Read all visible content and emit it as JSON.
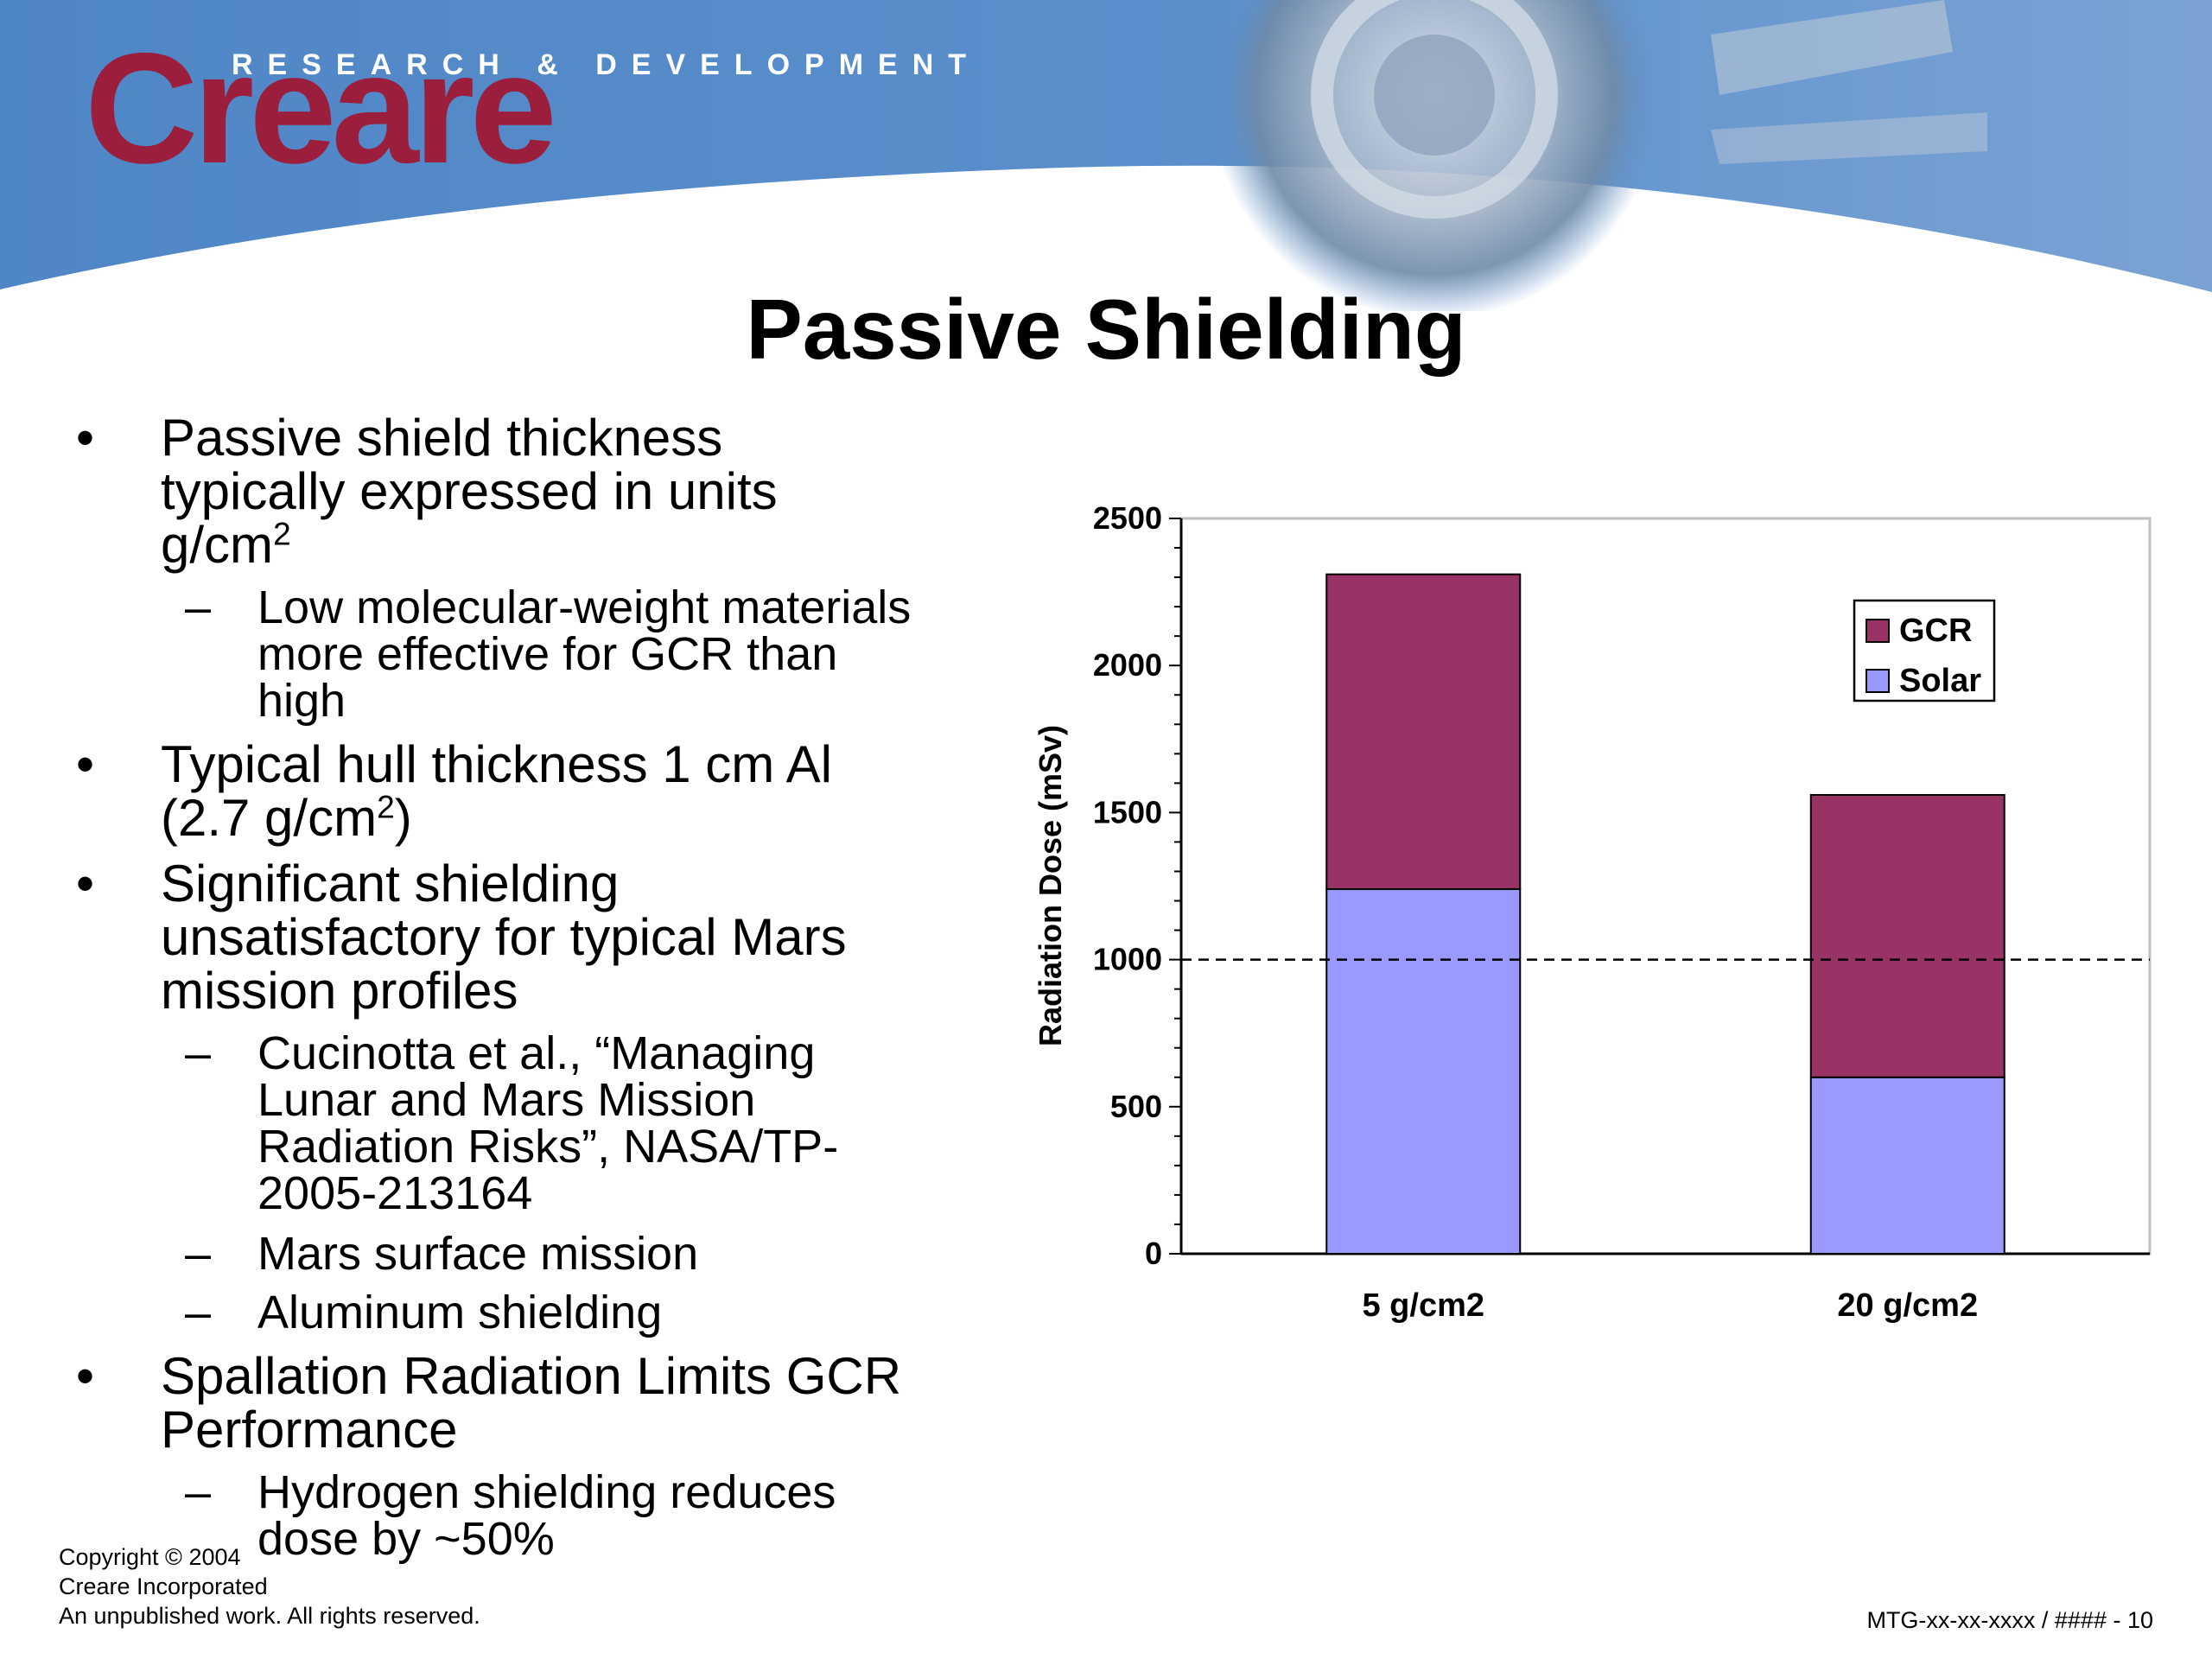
{
  "header": {
    "logo_tagline": "RESEARCH & DEVELOPMENT",
    "logo_word": "Creare",
    "banner_color": "#4a7fc1",
    "logo_color": "#9b1e3c"
  },
  "slide": {
    "title": "Passive Shielding",
    "bullets": [
      {
        "text_lines": [
          "Passive shield thickness",
          "typically expressed in units"
        ],
        "unit_base": "g/cm",
        "unit_sup": "2"
      },
      {
        "text": [
          "Low molecular-weight materials",
          "more effective for GCR than",
          "high"
        ]
      },
      {
        "text_main": "Typical hull thickness 1 cm Al",
        "text_unit_pre": "(2.7 g/cm",
        "text_unit_sup": "2",
        "text_unit_post": ")"
      },
      {
        "text": [
          "Significant shielding",
          "unsatisfactory for typical Mars",
          "mission profiles"
        ]
      },
      {
        "text": [
          "Cucinotta et al., “Managing",
          "Lunar and Mars Mission",
          "Radiation Risks”, NASA/TP-",
          "2005-213164"
        ]
      },
      {
        "text": [
          "Mars surface mission"
        ]
      },
      {
        "text": [
          "Aluminum shielding"
        ]
      },
      {
        "text": [
          "Spallation Radiation Limits GCR",
          "Performance"
        ]
      },
      {
        "text": [
          "Hydrogen shielding reduces",
          "dose by ~50%"
        ]
      }
    ],
    "bullet_symbol": "•",
    "dash_symbol": "–"
  },
  "footer": {
    "copyright": [
      "Copyright © 2004",
      "Creare Incorporated",
      "An unpublished work.  All rights reserved."
    ],
    "page_ref": "MTG-xx-xx-xxxx / #### - 10"
  },
  "chart_data": {
    "type": "bar",
    "stacked": true,
    "categories": [
      "5 g/cm2",
      "20 g/cm2"
    ],
    "series": [
      {
        "name": "Solar",
        "values": [
          1240,
          600
        ],
        "color": "#9999ff"
      },
      {
        "name": "GCR",
        "values": [
          1070,
          960
        ],
        "color": "#993366"
      }
    ],
    "reference_line": {
      "y": 1000,
      "style": "dashed"
    },
    "ylabel": "Radiation Dose (mSv)",
    "xlabel": "",
    "ylim": [
      0,
      2500
    ],
    "yticks": [
      0,
      500,
      1000,
      1500,
      2000,
      2500
    ],
    "legend_position": "top-right",
    "legend_order": [
      "GCR",
      "Solar"
    ],
    "grid": false
  }
}
